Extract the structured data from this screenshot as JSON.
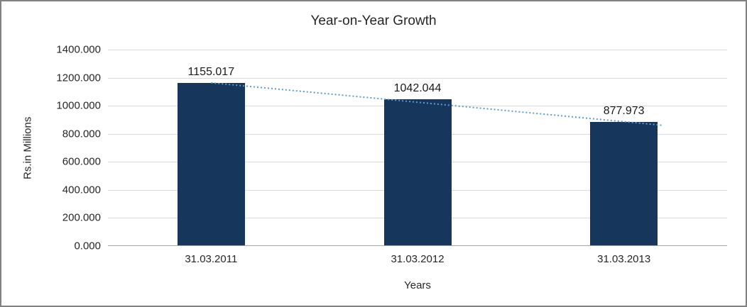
{
  "chart_data": {
    "type": "bar",
    "title": "Year-on-Year Growth",
    "xlabel": "Years",
    "ylabel": "Rs.in Millions",
    "categories": [
      "31.03.2011",
      "31.03.2012",
      "31.03.2013"
    ],
    "values": [
      1155.017,
      1042.044,
      877.973
    ],
    "data_labels": [
      "1155.017",
      "1042.044",
      "877.973"
    ],
    "ylim": [
      0,
      1400
    ],
    "yticks": [
      {
        "value": 0,
        "label": "0.000"
      },
      {
        "value": 200,
        "label": "200.000"
      },
      {
        "value": 400,
        "label": "400.000"
      },
      {
        "value": 600,
        "label": "600.000"
      },
      {
        "value": 800,
        "label": "800.000"
      },
      {
        "value": 1000,
        "label": "1000.000"
      },
      {
        "value": 1200,
        "label": "1200.000"
      },
      {
        "value": 1400,
        "label": "1400.000"
      }
    ],
    "grid": true,
    "legend": false,
    "trendline": true,
    "colors": {
      "bar": "#16365C",
      "trend": "#5B9BD5",
      "gridline": "#D9D9D9",
      "axis": "#A6A6A6",
      "text": "#262626",
      "border": "#818181"
    }
  }
}
